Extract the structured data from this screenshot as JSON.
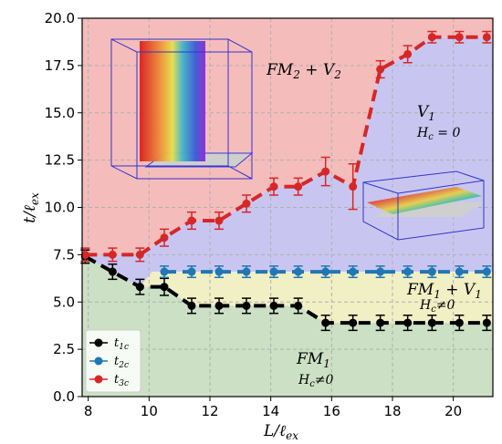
{
  "chart_data": {
    "type": "scatter",
    "xlabel": "L/ℓex",
    "ylabel": "t/ℓex",
    "xlim": [
      7.8,
      21.3
    ],
    "ylim": [
      0,
      20
    ],
    "x_ticks": [
      "8",
      "10",
      "12",
      "14",
      "16",
      "18",
      "20"
    ],
    "y_ticks": [
      "0.0",
      "2.5",
      "5.0",
      "7.5",
      "10.0",
      "12.5",
      "15.0",
      "17.5",
      "20.0"
    ],
    "grid": true,
    "legend_position": "bottom-left",
    "series": [
      {
        "name": "t1c",
        "label_main": "t",
        "label_sub": "1c",
        "color": "#000000",
        "x": [
          7.9,
          8.8,
          9.7,
          10.5,
          11.4,
          12.3,
          13.2,
          14.1,
          14.9,
          15.8,
          16.7,
          17.6,
          18.5,
          19.3,
          20.2,
          21.1
        ],
        "y": [
          7.4,
          6.6,
          5.8,
          5.8,
          4.8,
          4.8,
          4.8,
          4.8,
          4.8,
          3.9,
          3.9,
          3.9,
          3.9,
          3.9,
          3.9,
          3.9
        ],
        "err": [
          0.35,
          0.4,
          0.4,
          0.45,
          0.4,
          0.4,
          0.4,
          0.4,
          0.4,
          0.4,
          0.4,
          0.4,
          0.4,
          0.4,
          0.4,
          0.4
        ]
      },
      {
        "name": "t2c",
        "label_main": "t",
        "label_sub": "2c",
        "color": "#1f77b4",
        "x": [
          10.5,
          11.4,
          12.3,
          13.2,
          14.1,
          14.9,
          15.8,
          16.7,
          17.6,
          18.5,
          19.3,
          20.2,
          21.1
        ],
        "y": [
          6.6,
          6.6,
          6.6,
          6.6,
          6.6,
          6.6,
          6.6,
          6.6,
          6.6,
          6.6,
          6.6,
          6.6,
          6.6
        ],
        "err": [
          0.3,
          0.3,
          0.3,
          0.3,
          0.3,
          0.3,
          0.3,
          0.3,
          0.3,
          0.3,
          0.3,
          0.3,
          0.3
        ]
      },
      {
        "name": "t3c",
        "label_main": "t",
        "label_sub": "3c",
        "color": "#d62728",
        "x": [
          7.9,
          8.8,
          9.7,
          10.5,
          11.4,
          12.3,
          13.2,
          14.1,
          14.9,
          15.8,
          16.7,
          17.6,
          18.5,
          19.3,
          20.2,
          21.1
        ],
        "y": [
          7.5,
          7.5,
          7.5,
          8.4,
          9.3,
          9.3,
          10.2,
          11.1,
          11.1,
          11.9,
          11.1,
          17.3,
          18.1,
          19.0,
          19.0,
          19.0
        ],
        "err": [
          0.35,
          0.35,
          0.35,
          0.45,
          0.45,
          0.45,
          0.45,
          0.45,
          0.45,
          0.75,
          1.2,
          0.45,
          0.45,
          0.3,
          0.3,
          0.3
        ]
      }
    ],
    "regions": [
      {
        "main": "FM",
        "sub": "2",
        "suffix": " + V",
        "sub2": "2",
        "note": "",
        "color": "#f5bcbc"
      },
      {
        "main": "V",
        "sub": "1",
        "suffix": "",
        "sub2": "",
        "note_main": "H",
        "note_sub": "c",
        "note_rest": " = 0",
        "color": "#c8c6f1"
      },
      {
        "main": "FM",
        "sub": "1",
        "suffix": " + V",
        "sub2": "1",
        "note_main": "H",
        "note_sub": "c",
        "note_rest": "≠0",
        "color": "#f1efc4"
      },
      {
        "main": "FM",
        "sub": "1",
        "suffix": "",
        "sub2": "",
        "note_main": "H",
        "note_sub": "c",
        "note_rest": "≠0",
        "color": "#cbe0c4"
      }
    ]
  }
}
